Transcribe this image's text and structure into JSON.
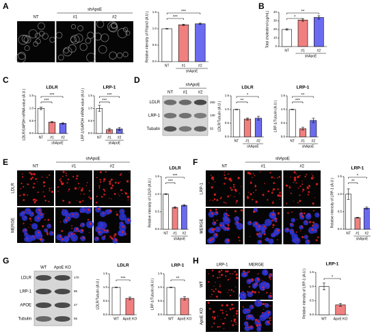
{
  "figure": {
    "letters": [
      "A",
      "B",
      "C",
      "D",
      "E",
      "F",
      "G",
      "H"
    ],
    "images": [
      {
        "columns": [
          "NT",
          "#1",
          "#2"
        ],
        "group_label": "shApoE"
      },
      {
        "columns": [
          "NT",
          "#1",
          "#2"
        ],
        "group_label": "shApoE",
        "rows": [
          "LDLR",
          "LRP-1",
          "Tubulin"
        ],
        "markers": [
          "250",
          "130",
          "55"
        ]
      },
      {
        "columns": [
          "NT",
          "#1",
          "#2"
        ],
        "group_label": "shApoE",
        "rows": [
          "LDLR",
          "MERGE"
        ]
      },
      {
        "columns": [
          "NT",
          "#1",
          "#2"
        ],
        "group_label": "shApoE",
        "rows": [
          "LRP-1",
          "MERGE"
        ]
      },
      {
        "columns": [
          "WT",
          "ApoE KO"
        ],
        "rows": [
          "LDLR",
          "LRP-1",
          "APOE",
          "Tubulin"
        ],
        "markers": [
          "170",
          "85",
          "27",
          "55"
        ]
      },
      {
        "columns": [
          "LRP-1",
          "MERGE"
        ],
        "rows": [
          "WT",
          "ApoE KO"
        ]
      }
    ]
  },
  "chart_data": [
    {
      "type": "bar",
      "ylabel": "Relative intensity of Filipin3 (A.U.)",
      "categories": [
        "NT",
        "#1",
        "#2"
      ],
      "group_label": "shApoE",
      "values": [
        1.0,
        1.12,
        1.15
      ],
      "errors": [
        0.01,
        0.02,
        0.02
      ],
      "colors": [
        "#ffffff",
        "#f08080",
        "#6b6bf0"
      ],
      "ylim": [
        0,
        1.5
      ],
      "yticks": [
        {
          "value": 0,
          "label": "0.0"
        },
        {
          "value": 0.5,
          "label": "0.5"
        },
        {
          "value": 1,
          "label": "1.0"
        },
        {
          "value": 1.5,
          "label": "1.5"
        }
      ],
      "significance": [
        "***",
        "***"
      ]
    },
    {
      "type": "bar",
      "ylabel": "Total cholesterol (ug/mL)",
      "categories": [
        "NT",
        "#1",
        "#2"
      ],
      "group_label": "shApoE",
      "values": [
        20,
        31,
        34
      ],
      "errors": [
        0.8,
        1.5,
        2
      ],
      "colors": [
        "#ffffff",
        "#f08080",
        "#6b6bf0"
      ],
      "ylim": [
        0,
        40
      ],
      "yticks": [
        0,
        10,
        20,
        30,
        40
      ],
      "significance": [
        "*",
        "**"
      ]
    },
    {
      "type": "bar",
      "title": "LDLR",
      "ylabel": "LDLR/GAPDH mRNA value (A.U.)",
      "categories": [
        "NT",
        "#1",
        "#2"
      ],
      "group_label": "shApoE",
      "values": [
        1.0,
        0.45,
        0.4
      ],
      "errors": [
        0.05,
        0.02,
        0.03
      ],
      "colors": [
        "#ffffff",
        "#f08080",
        "#6b6bf0"
      ],
      "ylim": [
        0,
        1.5
      ],
      "yticks": [
        {
          "value": 0,
          "label": "0.0"
        },
        {
          "value": 0.5,
          "label": "0.5"
        },
        {
          "value": 1,
          "label": "1.0"
        },
        {
          "value": 1.5,
          "label": "1.5"
        }
      ],
      "significance": [
        "***",
        "***"
      ]
    },
    {
      "type": "bar",
      "title": "LRP-1",
      "ylabel": "LRP-1/GAPDH mRNA value (A.U.)",
      "categories": [
        "NT",
        "#1",
        "#2"
      ],
      "group_label": "shApoE",
      "values": [
        1.0,
        0.15,
        0.18
      ],
      "errors": [
        0.12,
        0.05,
        0.06
      ],
      "colors": [
        "#ffffff",
        "#f08080",
        "#6b6bf0"
      ],
      "ylim": [
        0,
        1.5
      ],
      "yticks": [
        {
          "value": 0,
          "label": "0.0"
        },
        {
          "value": 0.5,
          "label": "0.5"
        },
        {
          "value": 1,
          "label": "1.0"
        },
        {
          "value": 1.5,
          "label": "1.5"
        }
      ],
      "significance": [
        "***",
        "***"
      ]
    },
    {
      "type": "bar",
      "title": "LDLR",
      "ylabel": "LDLR/Tubulin (A.U.)",
      "categories": [
        "NT",
        "#1",
        "#2"
      ],
      "group_label": "shApoE",
      "values": [
        1.0,
        0.65,
        0.68
      ],
      "errors": [
        0.01,
        0.04,
        0.07
      ],
      "colors": [
        "#ffffff",
        "#f08080",
        "#6b6bf0"
      ],
      "ylim": [
        0,
        1.5
      ],
      "yticks": [
        {
          "value": 0,
          "label": "0.0"
        },
        {
          "value": 0.5,
          "label": "0.5"
        },
        {
          "value": 1,
          "label": "1.0"
        },
        {
          "value": 1.5,
          "label": "1.5"
        }
      ],
      "significance": [
        "**",
        "*"
      ]
    },
    {
      "type": "bar",
      "title": "LRP-1",
      "ylabel": "LRP-1/Tubulin (A.U.)",
      "categories": [
        "NT",
        "#1",
        "#2"
      ],
      "group_label": "shApoE",
      "values": [
        1.0,
        0.3,
        0.6
      ],
      "errors": [
        0.01,
        0.05,
        0.08
      ],
      "colors": [
        "#ffffff",
        "#f08080",
        "#6b6bf0"
      ],
      "ylim": [
        0,
        1.5
      ],
      "yticks": [
        {
          "value": 0,
          "label": "0.0"
        },
        {
          "value": 0.5,
          "label": "0.5"
        },
        {
          "value": 1,
          "label": "1.0"
        },
        {
          "value": 1.5,
          "label": "1.5"
        }
      ],
      "significance": [
        "***",
        "**"
      ]
    },
    {
      "type": "bar",
      "title": "LDLR",
      "ylabel": "Relative intensity of LDLR (A.U.)",
      "categories": [
        "NT",
        "#1",
        "#2"
      ],
      "group_label": "shApoE",
      "values": [
        1.0,
        0.62,
        0.68
      ],
      "errors": [
        0.01,
        0.02,
        0.02
      ],
      "colors": [
        "#ffffff",
        "#f08080",
        "#6b6bf0"
      ],
      "ylim": [
        0,
        1.5
      ],
      "yticks": [
        {
          "value": 0,
          "label": "0.0"
        },
        {
          "value": 0.5,
          "label": "0.5"
        },
        {
          "value": 1,
          "label": "1.0"
        },
        {
          "value": 1.5,
          "label": "1.5"
        }
      ],
      "significance": [
        "***",
        "***"
      ]
    },
    {
      "type": "bar",
      "title": "LRP-1",
      "ylabel": "Relative intensity of LRP-1 (A.U.)",
      "categories": [
        "NT",
        "#1",
        "#2"
      ],
      "group_label": "shApoE",
      "values": [
        1.0,
        0.33,
        0.6
      ],
      "errors": [
        0.15,
        0.01,
        0.03
      ],
      "colors": [
        "#ffffff",
        "#f08080",
        "#6b6bf0"
      ],
      "ylim": [
        0,
        1.5
      ],
      "yticks": [
        {
          "value": 0,
          "label": "0.0"
        },
        {
          "value": 0.5,
          "label": "0.5"
        },
        {
          "value": 1,
          "label": "1.0"
        },
        {
          "value": 1.5,
          "label": "1.5"
        }
      ],
      "significance": [
        "**",
        "*"
      ]
    },
    {
      "type": "bar",
      "title": "LDLR",
      "ylabel": "LDLR/Tubulin (A.U.)",
      "categories": [
        "WT",
        "ApoE KO"
      ],
      "values": [
        1.0,
        0.6
      ],
      "errors": [
        0.01,
        0.05
      ],
      "colors": [
        "#ffffff",
        "#f08080"
      ],
      "ylim": [
        0,
        1.5
      ],
      "yticks": [
        {
          "value": 0,
          "label": "0.0"
        },
        {
          "value": 0.5,
          "label": "0.5"
        },
        {
          "value": 1,
          "label": "1.0"
        },
        {
          "value": 1.5,
          "label": "1.5"
        }
      ],
      "significance": [
        "***"
      ]
    },
    {
      "type": "bar",
      "title": "LRP-1",
      "ylabel": "LRP-1/Tubulin (A.U.)",
      "categories": [
        "WT",
        "ApoE KO"
      ],
      "values": [
        1.0,
        0.6
      ],
      "errors": [
        0.01,
        0.06
      ],
      "colors": [
        "#ffffff",
        "#f08080"
      ],
      "ylim": [
        0,
        1.5
      ],
      "yticks": [
        {
          "value": 0,
          "label": "0.0"
        },
        {
          "value": 0.5,
          "label": "0.5"
        },
        {
          "value": 1,
          "label": "1.0"
        },
        {
          "value": 1.5,
          "label": "1.5"
        }
      ],
      "significance": [
        "**"
      ]
    },
    {
      "type": "bar",
      "title": "LRP-1",
      "ylabel": "Relative intensity of LRP-1 (A.U.)",
      "categories": [
        "WT",
        "ApoE KO"
      ],
      "values": [
        1.0,
        0.35
      ],
      "errors": [
        0.12,
        0.05
      ],
      "colors": [
        "#ffffff",
        "#f08080"
      ],
      "ylim": [
        0,
        1.5
      ],
      "yticks": [
        {
          "value": 0,
          "label": "0.0"
        },
        {
          "value": 0.5,
          "label": "0.5"
        },
        {
          "value": 1,
          "label": "1.0"
        },
        {
          "value": 1.5,
          "label": "1.5"
        }
      ],
      "significance": [
        "*"
      ]
    }
  ]
}
